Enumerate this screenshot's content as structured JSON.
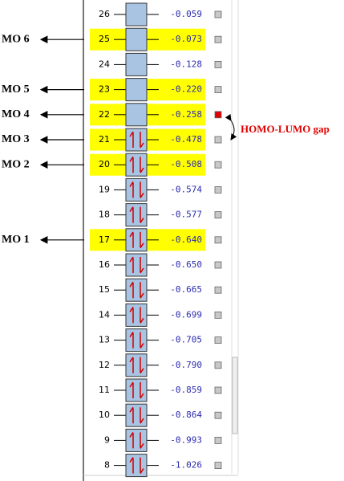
{
  "orbitals": [
    {
      "number": "26",
      "energy": "-0.059",
      "highlighted": false,
      "occupied": false,
      "selected": false
    },
    {
      "number": "25",
      "energy": "-0.073",
      "highlighted": true,
      "occupied": false,
      "selected": false
    },
    {
      "number": "24",
      "energy": "-0.128",
      "highlighted": false,
      "occupied": false,
      "selected": false
    },
    {
      "number": "23",
      "energy": "-0.220",
      "highlighted": true,
      "occupied": false,
      "selected": false
    },
    {
      "number": "22",
      "energy": "-0.258",
      "highlighted": true,
      "occupied": false,
      "selected": true
    },
    {
      "number": "21",
      "energy": "-0.478",
      "highlighted": true,
      "occupied": true,
      "selected": false
    },
    {
      "number": "20",
      "energy": "-0.508",
      "highlighted": true,
      "occupied": true,
      "selected": false
    },
    {
      "number": "19",
      "energy": "-0.574",
      "highlighted": false,
      "occupied": true,
      "selected": false
    },
    {
      "number": "18",
      "energy": "-0.577",
      "highlighted": false,
      "occupied": true,
      "selected": false
    },
    {
      "number": "17",
      "energy": "-0.640",
      "highlighted": true,
      "occupied": true,
      "selected": false
    },
    {
      "number": "16",
      "energy": "-0.650",
      "highlighted": false,
      "occupied": true,
      "selected": false
    },
    {
      "number": "15",
      "energy": "-0.665",
      "highlighted": false,
      "occupied": true,
      "selected": false
    },
    {
      "number": "14",
      "energy": "-0.699",
      "highlighted": false,
      "occupied": true,
      "selected": false
    },
    {
      "number": "13",
      "energy": "-0.705",
      "highlighted": false,
      "occupied": true,
      "selected": false
    },
    {
      "number": "12",
      "energy": "-0.790",
      "highlighted": false,
      "occupied": true,
      "selected": false
    },
    {
      "number": "11",
      "energy": "-0.859",
      "highlighted": false,
      "occupied": true,
      "selected": false
    },
    {
      "number": "10",
      "energy": "-0.864",
      "highlighted": false,
      "occupied": true,
      "selected": false
    },
    {
      "number": "9",
      "energy": "-0.993",
      "highlighted": false,
      "occupied": true,
      "selected": false
    },
    {
      "number": "8",
      "energy": "-1.026",
      "highlighted": false,
      "occupied": true,
      "selected": false
    }
  ],
  "annotations": [
    {
      "label": "MO 6",
      "orbital": "25"
    },
    {
      "label": "MO 5",
      "orbital": "23"
    },
    {
      "label": "MO 4",
      "orbital": "22"
    },
    {
      "label": "MO 3",
      "orbital": "21"
    },
    {
      "label": "MO 2",
      "orbital": "20"
    },
    {
      "label": "MO 1",
      "orbital": "17"
    }
  ],
  "gap_label": "HOMO-LUMO gap"
}
